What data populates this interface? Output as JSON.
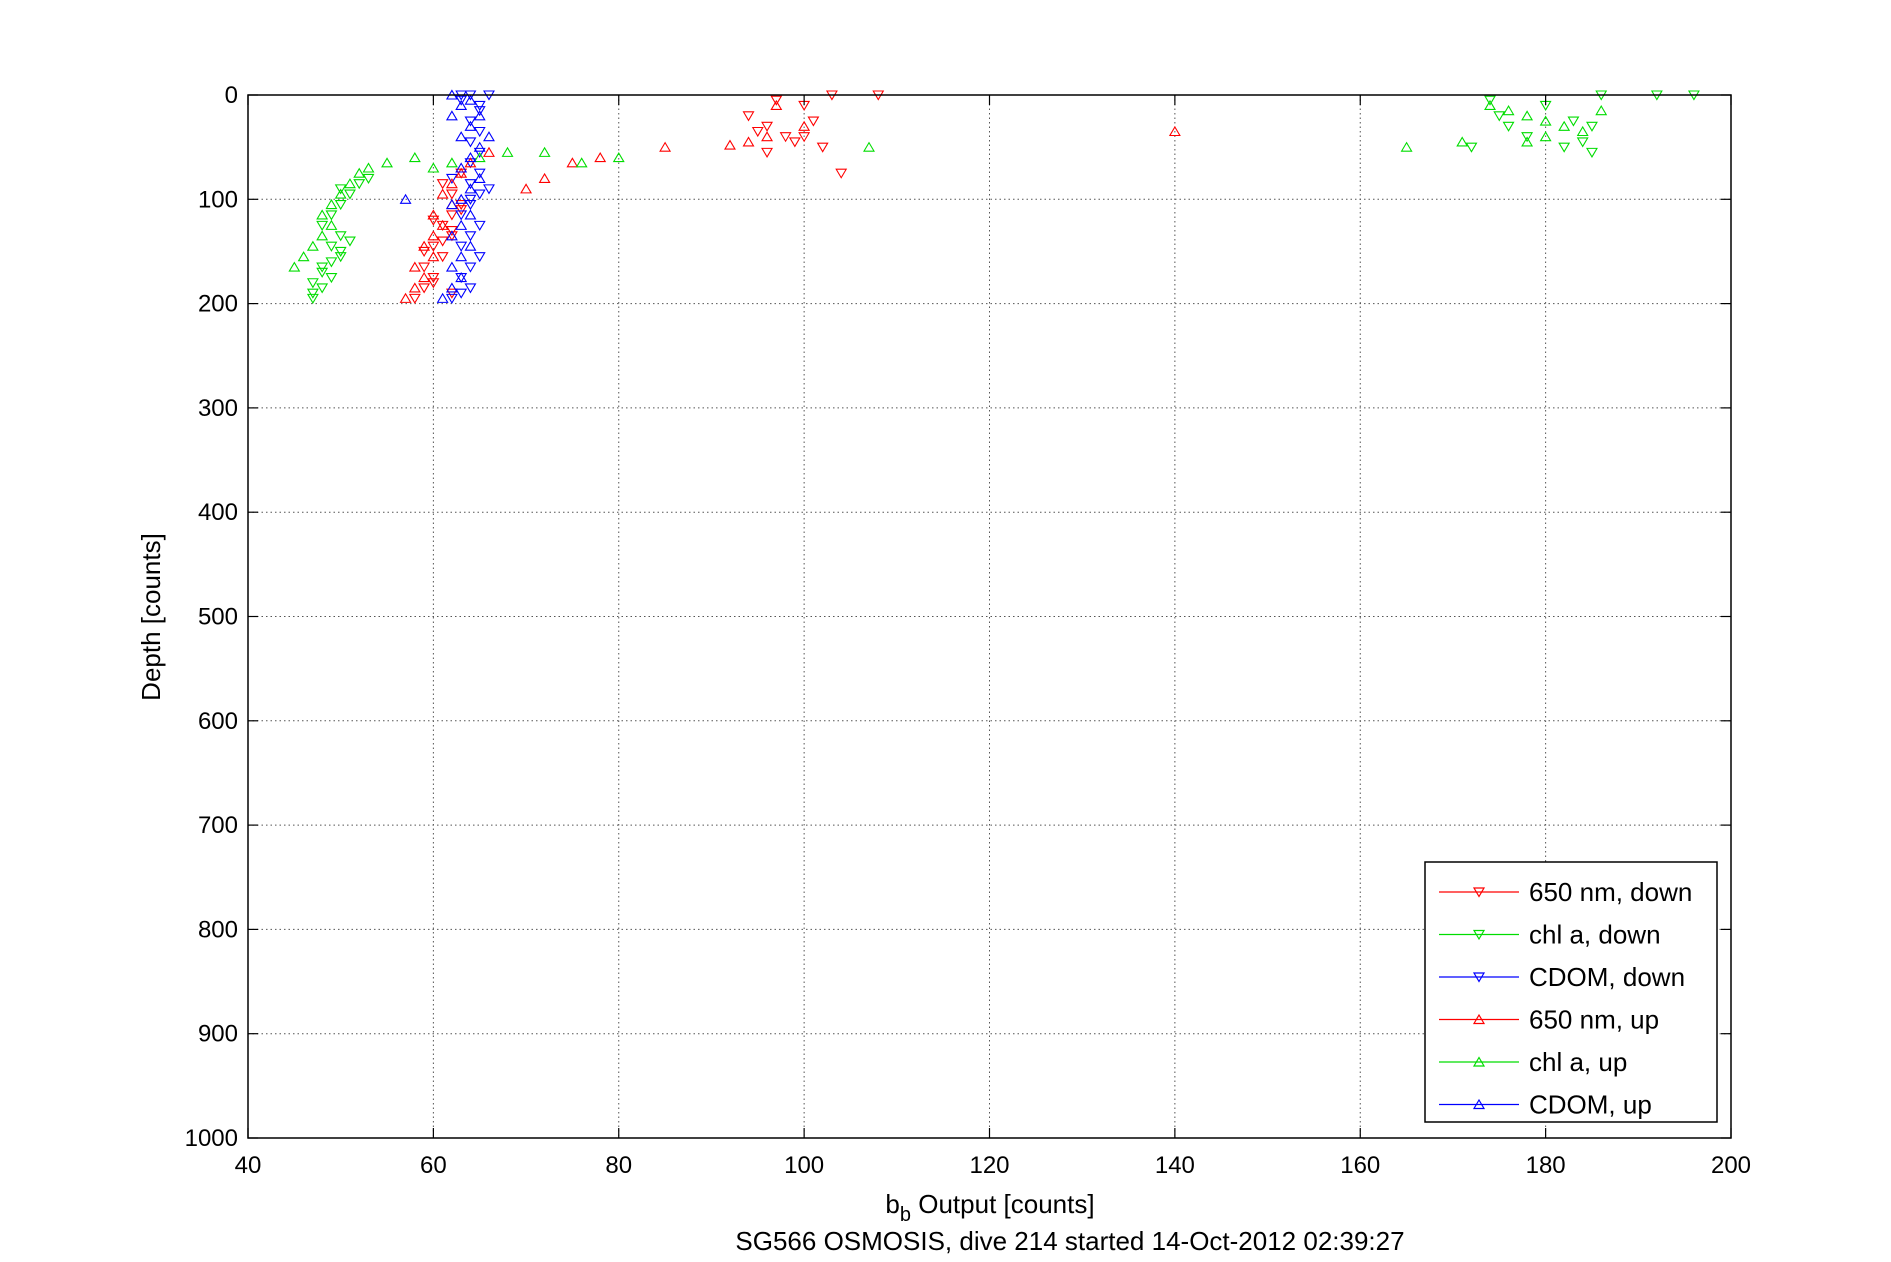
{
  "chart_data": {
    "type": "scatter",
    "title": "",
    "xlabel_main": "b",
    "xlabel_sub": "b",
    "xlabel_rest": " Output [counts]",
    "ylabel": "Depth [counts]",
    "caption": "SG566 OSMOSIS, dive 214 started 14-Oct-2012 02:39:27",
    "xlim": [
      40,
      200
    ],
    "ylim": [
      0,
      1000
    ],
    "y_reversed": true,
    "xticks": [
      "40",
      "60",
      "80",
      "100",
      "120",
      "140",
      "160",
      "180",
      "200"
    ],
    "yticks": [
      "0",
      "100",
      "200",
      "300",
      "400",
      "500",
      "600",
      "700",
      "800",
      "900",
      "1000"
    ],
    "grid": true,
    "legend_position": "bottom-right",
    "series": [
      {
        "name": "650 nm, down",
        "color": "#ff0000",
        "marker": "triangle-down",
        "points": [
          [
            58,
            195
          ],
          [
            59,
            185
          ],
          [
            60,
            175
          ],
          [
            59,
            165
          ],
          [
            61,
            155
          ],
          [
            60,
            145
          ],
          [
            62,
            135
          ],
          [
            61,
            125
          ],
          [
            62,
            115
          ],
          [
            63,
            105
          ],
          [
            62,
            95
          ],
          [
            61,
            85
          ],
          [
            63,
            75
          ],
          [
            62,
            190
          ],
          [
            60,
            180
          ],
          [
            59,
            150
          ],
          [
            61,
            140
          ],
          [
            62,
            130
          ],
          [
            60,
            120
          ],
          [
            63,
            110
          ],
          [
            94,
            20
          ],
          [
            96,
            30
          ],
          [
            98,
            40
          ],
          [
            100,
            10
          ],
          [
            102,
            50
          ],
          [
            97,
            5
          ],
          [
            99,
            45
          ],
          [
            101,
            25
          ],
          [
            103,
            0
          ],
          [
            108,
            0
          ],
          [
            104,
            75
          ],
          [
            96,
            55
          ],
          [
            95,
            35
          ],
          [
            100,
            40
          ]
        ]
      },
      {
        "name": "chl a, down",
        "color": "#00dd00",
        "marker": "triangle-down",
        "points": [
          [
            47,
            195
          ],
          [
            48,
            185
          ],
          [
            49,
            175
          ],
          [
            48,
            165
          ],
          [
            50,
            155
          ],
          [
            49,
            145
          ],
          [
            50,
            135
          ],
          [
            48,
            125
          ],
          [
            49,
            115
          ],
          [
            50,
            105
          ],
          [
            51,
            95
          ],
          [
            50,
            90
          ],
          [
            52,
            85
          ],
          [
            53,
            80
          ],
          [
            47,
            180
          ],
          [
            48,
            170
          ],
          [
            49,
            160
          ],
          [
            50,
            150
          ],
          [
            51,
            140
          ],
          [
            47,
            190
          ],
          [
            175,
            20
          ],
          [
            176,
            30
          ],
          [
            178,
            40
          ],
          [
            180,
            10
          ],
          [
            182,
            50
          ],
          [
            184,
            45
          ],
          [
            185,
            30
          ],
          [
            186,
            0
          ],
          [
            192,
            0
          ],
          [
            196,
            0
          ],
          [
            172,
            50
          ],
          [
            174,
            5
          ],
          [
            183,
            25
          ],
          [
            185,
            55
          ]
        ]
      },
      {
        "name": "CDOM, down",
        "color": "#0000ff",
        "marker": "triangle-down",
        "points": [
          [
            62,
            195
          ],
          [
            63,
            190
          ],
          [
            64,
            185
          ],
          [
            63,
            175
          ],
          [
            64,
            165
          ],
          [
            65,
            155
          ],
          [
            63,
            145
          ],
          [
            64,
            135
          ],
          [
            65,
            125
          ],
          [
            63,
            115
          ],
          [
            64,
            105
          ],
          [
            65,
            95
          ],
          [
            64,
            85
          ],
          [
            65,
            75
          ],
          [
            64,
            65
          ],
          [
            65,
            55
          ],
          [
            64,
            45
          ],
          [
            65,
            35
          ],
          [
            64,
            25
          ],
          [
            65,
            15
          ],
          [
            63,
            5
          ],
          [
            64,
            0
          ],
          [
            66,
            0
          ],
          [
            62,
            80
          ],
          [
            63,
            0
          ],
          [
            65,
            10
          ],
          [
            66,
            90
          ],
          [
            64,
            100
          ]
        ]
      },
      {
        "name": "650 nm, up",
        "color": "#ff0000",
        "marker": "triangle-up",
        "points": [
          [
            57,
            195
          ],
          [
            58,
            185
          ],
          [
            59,
            175
          ],
          [
            58,
            165
          ],
          [
            60,
            155
          ],
          [
            59,
            145
          ],
          [
            60,
            135
          ],
          [
            61,
            125
          ],
          [
            60,
            115
          ],
          [
            62,
            105
          ],
          [
            61,
            95
          ],
          [
            62,
            85
          ],
          [
            63,
            75
          ],
          [
            64,
            65
          ],
          [
            66,
            55
          ],
          [
            70,
            90
          ],
          [
            72,
            80
          ],
          [
            75,
            65
          ],
          [
            78,
            60
          ],
          [
            85,
            50
          ],
          [
            92,
            48
          ],
          [
            94,
            45
          ],
          [
            96,
            40
          ],
          [
            100,
            30
          ],
          [
            140,
            35
          ],
          [
            97,
            10
          ]
        ]
      },
      {
        "name": "chl a, up",
        "color": "#00dd00",
        "marker": "triangle-up",
        "points": [
          [
            45,
            165
          ],
          [
            46,
            155
          ],
          [
            47,
            145
          ],
          [
            48,
            135
          ],
          [
            49,
            125
          ],
          [
            48,
            115
          ],
          [
            49,
            105
          ],
          [
            50,
            95
          ],
          [
            51,
            85
          ],
          [
            52,
            75
          ],
          [
            53,
            70
          ],
          [
            55,
            65
          ],
          [
            58,
            60
          ],
          [
            60,
            70
          ],
          [
            62,
            65
          ],
          [
            65,
            60
          ],
          [
            68,
            55
          ],
          [
            72,
            55
          ],
          [
            76,
            65
          ],
          [
            80,
            60
          ],
          [
            107,
            50
          ],
          [
            165,
            50
          ],
          [
            171,
            45
          ],
          [
            174,
            10
          ],
          [
            176,
            15
          ],
          [
            178,
            20
          ],
          [
            180,
            25
          ],
          [
            182,
            30
          ],
          [
            184,
            35
          ],
          [
            186,
            15
          ],
          [
            178,
            45
          ],
          [
            180,
            40
          ]
        ]
      },
      {
        "name": "CDOM, up",
        "color": "#0000ff",
        "marker": "triangle-up",
        "points": [
          [
            61,
            195
          ],
          [
            62,
            185
          ],
          [
            63,
            175
          ],
          [
            62,
            165
          ],
          [
            63,
            155
          ],
          [
            64,
            145
          ],
          [
            62,
            135
          ],
          [
            63,
            125
          ],
          [
            64,
            115
          ],
          [
            62,
            105
          ],
          [
            63,
            100
          ],
          [
            57,
            100
          ],
          [
            64,
            90
          ],
          [
            65,
            80
          ],
          [
            63,
            70
          ],
          [
            64,
            60
          ],
          [
            65,
            50
          ],
          [
            63,
            40
          ],
          [
            64,
            30
          ],
          [
            62,
            20
          ],
          [
            63,
            10
          ],
          [
            62,
            0
          ],
          [
            64,
            5
          ],
          [
            65,
            20
          ],
          [
            66,
            40
          ]
        ]
      }
    ]
  }
}
